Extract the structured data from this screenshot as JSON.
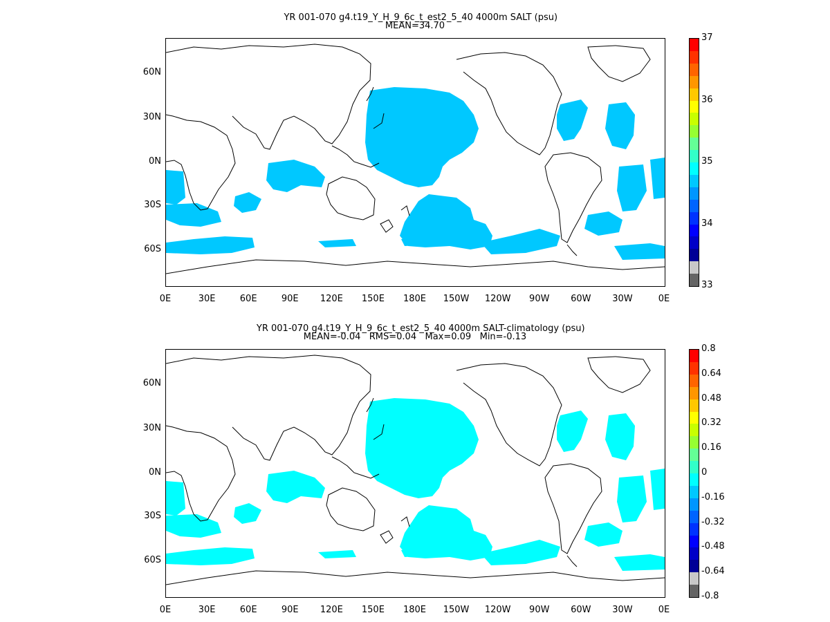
{
  "panels": [
    {
      "title": "YR 001-070 g4.t19_Y_H_9_6c_t_est2_5_40 4000m SALT (psu)",
      "subtitle": "MEAN=34.70",
      "fill_color": "#00c8ff",
      "colorbar": {
        "labels": [
          "37",
          "36",
          "35",
          "34",
          "33"
        ],
        "colors": [
          "#ff0000",
          "#ff3200",
          "#ff6400",
          "#ff9600",
          "#ffc800",
          "#ffff00",
          "#c8ff00",
          "#96ff32",
          "#64ff96",
          "#32ffc8",
          "#00ffff",
          "#00c8ff",
          "#0096ff",
          "#0064ff",
          "#0032ff",
          "#0000ff",
          "#0000c8",
          "#000096",
          "#c8c8c8",
          "#646464"
        ]
      }
    },
    {
      "title": "YR 001-070 g4.t19_Y_H_9_6c_t_est2_5_40 4000m SALT-climatology (psu)",
      "subtitle": "MEAN=-0.04   RMS=0.04   Max=0.09   Min=-0.13",
      "fill_color": "#00ffff",
      "colorbar": {
        "labels": [
          "0.8",
          "0.64",
          "0.48",
          "0.32",
          "0.16",
          "0",
          "-0.16",
          "-0.32",
          "-0.48",
          "-0.64",
          "-0.8"
        ],
        "colors": [
          "#ff0000",
          "#ff3200",
          "#ff6400",
          "#ff9600",
          "#ffc800",
          "#ffff00",
          "#c8ff00",
          "#96ff32",
          "#64ff96",
          "#32ffc8",
          "#00ffff",
          "#00c8ff",
          "#0096ff",
          "#0064ff",
          "#0032ff",
          "#0000ff",
          "#0000c8",
          "#000096",
          "#c8c8c8",
          "#646464"
        ]
      }
    }
  ],
  "x_ticks": [
    "0E",
    "30E",
    "60E",
    "90E",
    "120E",
    "150E",
    "180E",
    "150W",
    "120W",
    "90W",
    "60W",
    "30W",
    "0E"
  ],
  "y_ticks": [
    "60N",
    "30N",
    "0N",
    "30S",
    "60S"
  ]
}
